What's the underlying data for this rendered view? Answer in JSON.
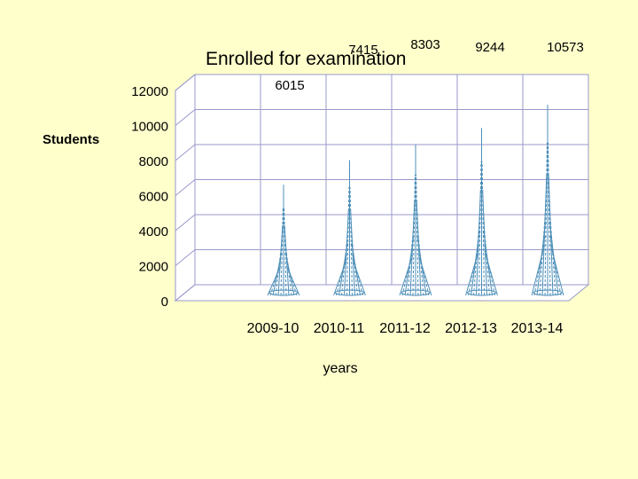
{
  "chart_data": {
    "type": "bar",
    "title": "Enrolled for examination",
    "ylabel": "Students",
    "xlabel": "years",
    "categories": [
      "2009-10",
      "2010-11",
      "2011-12",
      "2012-13",
      "2013-14"
    ],
    "values": [
      6015,
      7415,
      8303,
      9244,
      10573
    ],
    "yticks": [
      "0",
      "2000",
      "4000",
      "6000",
      "8000",
      "10000",
      "12000"
    ],
    "ylim": [
      0,
      12000
    ],
    "grid": true,
    "legend": "none",
    "colors": {
      "background": "#ffffcc",
      "plot_bg": "#ffffff",
      "grid": "#9999cc",
      "bar": "#4d8fb8"
    }
  }
}
